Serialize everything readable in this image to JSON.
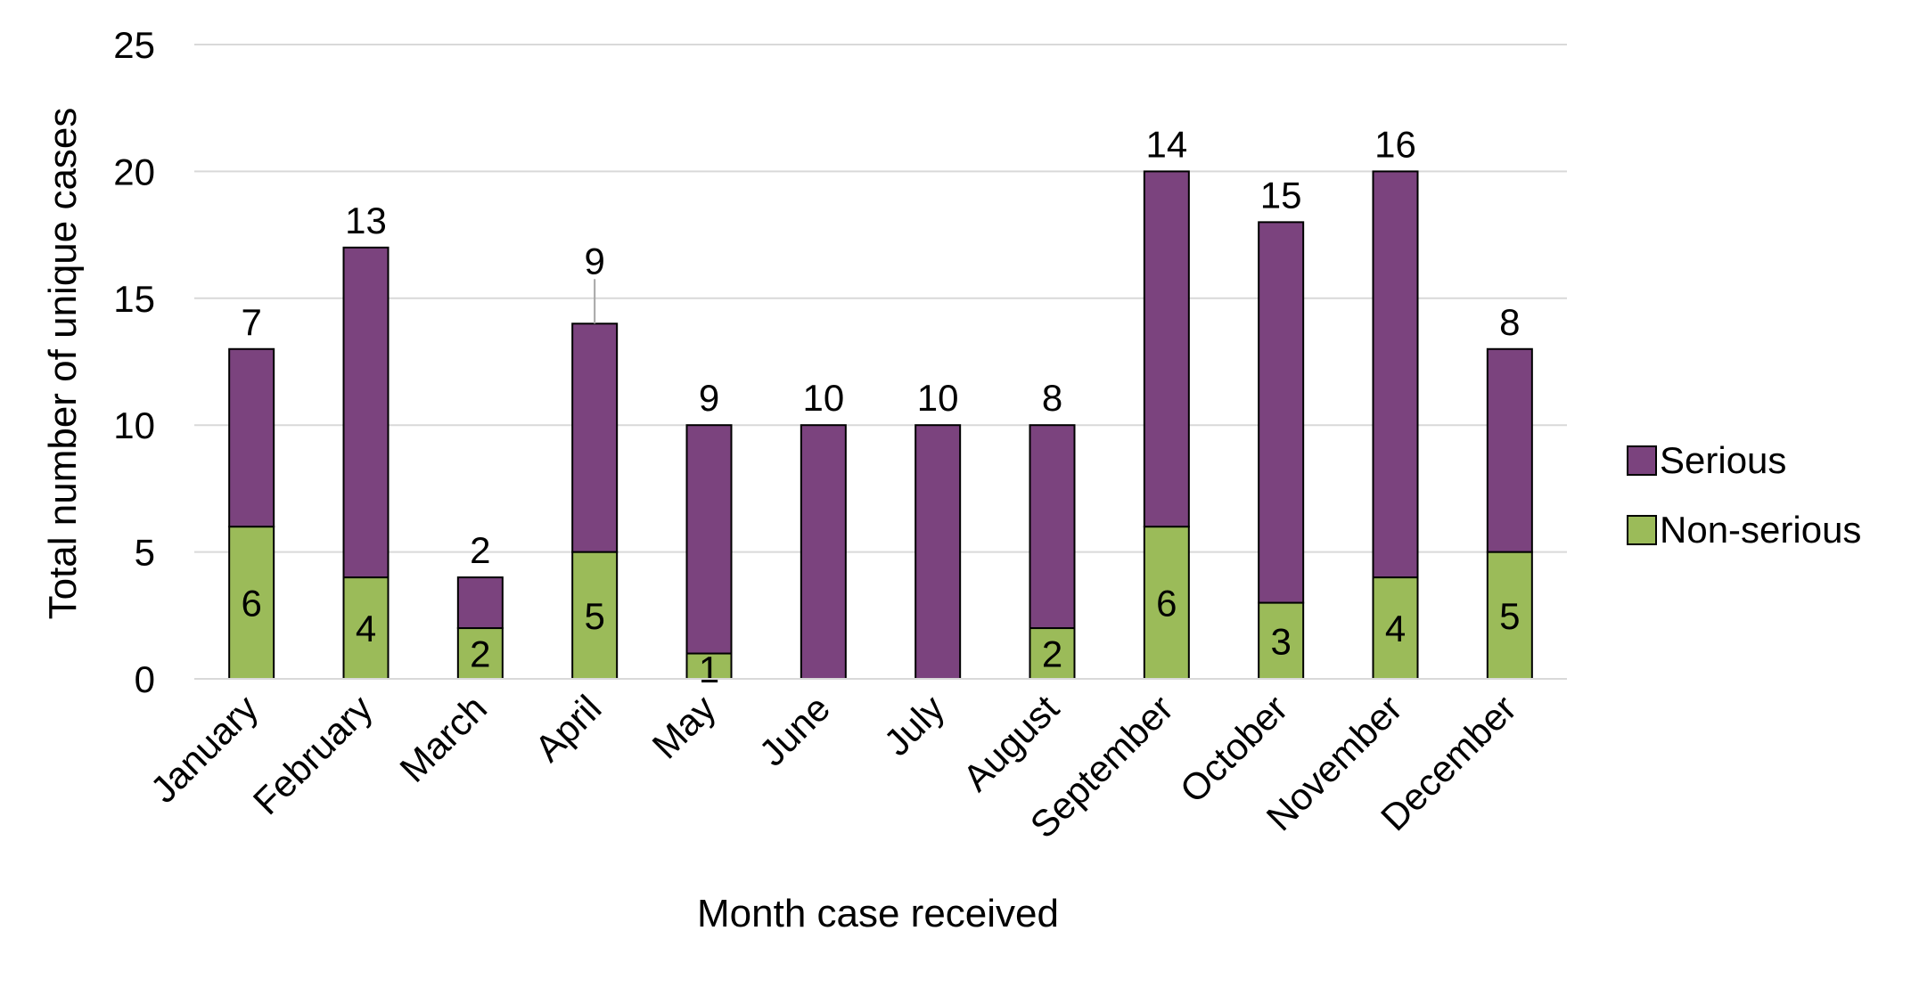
{
  "chart_data": {
    "type": "bar",
    "stacked": true,
    "title": "",
    "xlabel": "Month case received",
    "ylabel": "Total number of unique cases",
    "ylim": [
      0,
      25
    ],
    "yticks": [
      0,
      5,
      10,
      15,
      20,
      25
    ],
    "grid": true,
    "legend_position": "right",
    "categories": [
      "January",
      "February",
      "March",
      "April",
      "May",
      "June",
      "July",
      "August",
      "September",
      "October",
      "November",
      "December"
    ],
    "series": [
      {
        "name": "Non-serious",
        "color": "#9bbb59",
        "values": [
          6,
          4,
          2,
          5,
          1,
          0,
          0,
          2,
          6,
          3,
          4,
          5
        ],
        "labels": [
          "6",
          "4",
          "2",
          "5",
          "1",
          "",
          "",
          "2",
          "6",
          "3",
          "4",
          "5"
        ]
      },
      {
        "name": "Serious",
        "color": "#7b437e",
        "values": [
          7,
          13,
          2,
          9,
          9,
          10,
          10,
          8,
          14,
          15,
          16,
          8
        ],
        "labels": [
          "7",
          "13",
          "2",
          "9",
          "9",
          "10",
          "10",
          "8",
          "14",
          "15",
          "16",
          "8"
        ]
      }
    ]
  }
}
